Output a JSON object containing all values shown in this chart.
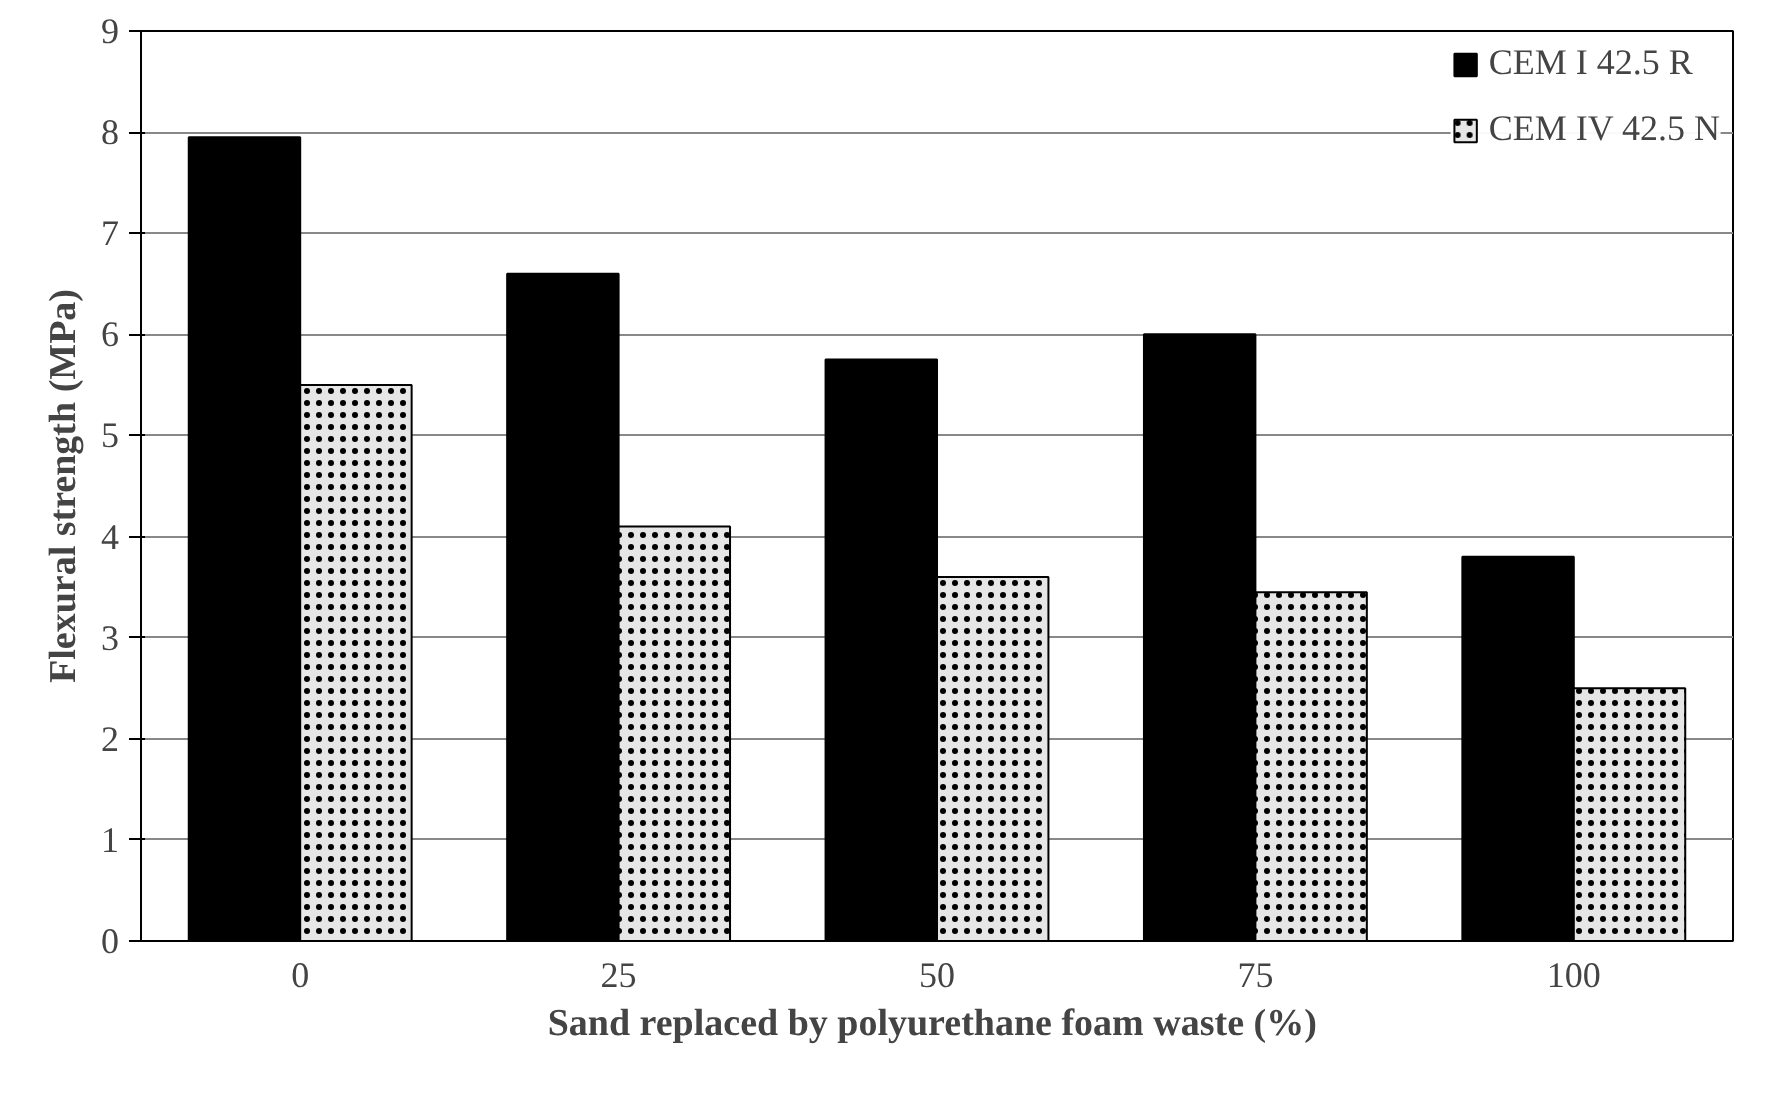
{
  "chart_data": {
    "type": "bar",
    "xlabel": "Sand replaced by polyurethane foam waste  (%)",
    "ylabel": "Flexural strength (MPa)",
    "categories": [
      "0",
      "25",
      "50",
      "75",
      "100"
    ],
    "series": [
      {
        "name": "CEM I 42.5 R",
        "color": "#000000",
        "values": [
          7.95,
          6.6,
          5.75,
          6.0,
          3.8
        ]
      },
      {
        "name": "CEM IV 42.5 N",
        "color": "#e6e6e6",
        "values": [
          5.5,
          4.1,
          3.6,
          3.45,
          2.5
        ]
      }
    ],
    "ylim": [
      0,
      9
    ],
    "yticks": [
      0,
      1,
      2,
      3,
      4,
      5,
      6,
      7,
      8,
      9
    ],
    "grid": "y",
    "legend": "top right"
  }
}
